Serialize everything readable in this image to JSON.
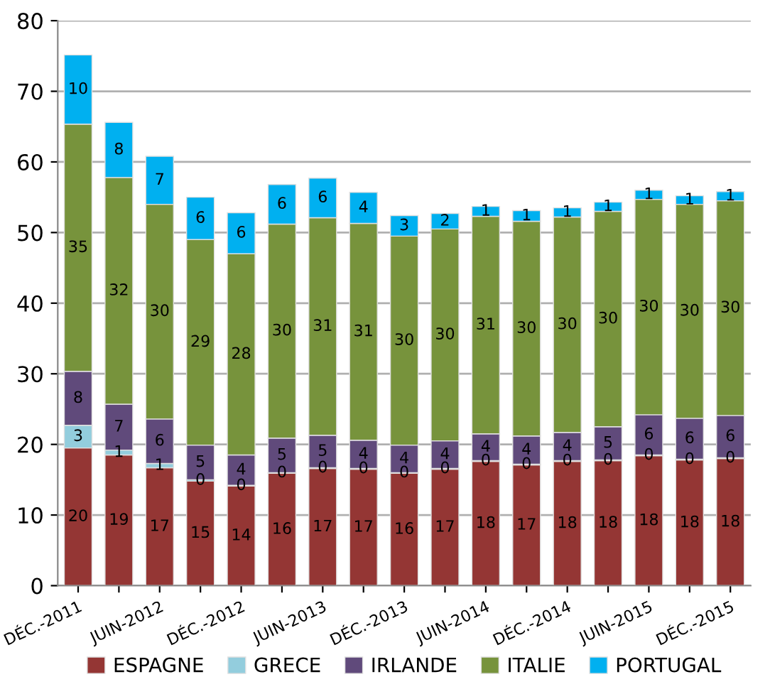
{
  "chart_data": {
    "type": "bar",
    "stacked": true,
    "categories": [
      "DÉC.-2011",
      null,
      "JUIN-2012",
      null,
      "DÉC.-2012",
      null,
      "JUIN-2013",
      null,
      "DÉC.-2013",
      null,
      "JUIN-2014",
      null,
      "DÉC.-2014",
      null,
      "JUIN-2015",
      null,
      "DÉC.-2015"
    ],
    "series": [
      {
        "name": "ESPAGNE",
        "color": "#943634",
        "values": [
          19.5,
          18.5,
          16.7,
          14.8,
          14.1,
          15.9,
          16.6,
          16.5,
          15.9,
          16.5,
          17.6,
          17.1,
          17.6,
          17.7,
          18.4,
          17.8,
          18.0
        ],
        "value_labels": [
          "20",
          "19",
          "17",
          "15",
          "14",
          "16",
          "17",
          "17",
          "16",
          "17",
          "18",
          "17",
          "18",
          "18",
          "18",
          "18",
          "18"
        ]
      },
      {
        "name": "GRECE",
        "color": "#93cddd",
        "values": [
          3.2,
          0.7,
          0.6,
          0.2,
          0.1,
          0.1,
          0.1,
          0.1,
          0.1,
          0.1,
          0.1,
          0.1,
          0.1,
          0.1,
          0.1,
          0.1,
          0.1
        ],
        "value_labels": [
          "3",
          "1",
          "1",
          "0",
          "0",
          "0",
          "0",
          "0",
          "0",
          "0",
          "0",
          "0",
          "0",
          "0",
          "0",
          "0",
          "0"
        ]
      },
      {
        "name": "IRLANDE",
        "color": "#604a7b",
        "values": [
          7.65,
          6.5,
          6.3,
          4.9,
          4.3,
          4.9,
          4.6,
          4.0,
          3.9,
          3.9,
          3.8,
          4.0,
          4.0,
          4.7,
          5.7,
          5.8,
          6.0
        ],
        "value_labels": [
          "8",
          "7",
          "6",
          "5",
          "4",
          "5",
          "5",
          "4",
          "4",
          "4",
          "4",
          "4",
          "4",
          "5",
          "6",
          "6",
          "6"
        ]
      },
      {
        "name": "ITALIE",
        "color": "#77933c",
        "values": [
          35.0,
          32.1,
          30.4,
          29.1,
          28.5,
          30.3,
          30.8,
          30.7,
          29.6,
          30.0,
          30.8,
          30.4,
          30.5,
          30.5,
          30.5,
          30.3,
          30.4
        ],
        "value_labels": [
          "35",
          "32",
          "30",
          "29",
          "28",
          "30",
          "31",
          "31",
          "30",
          "30",
          "31",
          "30",
          "30",
          "30",
          "30",
          "30",
          "30"
        ]
      },
      {
        "name": "PORTUGAL",
        "color": "#00b0f0",
        "values": [
          9.8,
          7.8,
          6.8,
          6.0,
          5.8,
          5.6,
          5.6,
          4.4,
          2.9,
          2.2,
          1.4,
          1.5,
          1.3,
          1.3,
          1.3,
          1.2,
          1.3
        ],
        "value_labels": [
          "10",
          "8",
          "7",
          "6",
          "6",
          "6",
          "6",
          "4",
          "3",
          "2",
          "1",
          "1",
          "1",
          "1",
          "1",
          "1",
          "1"
        ]
      }
    ],
    "ylim": [
      0,
      80
    ],
    "yticks": [
      0,
      10,
      20,
      30,
      40,
      50,
      60,
      70,
      80
    ],
    "grid": "y",
    "legend": "bottom"
  }
}
